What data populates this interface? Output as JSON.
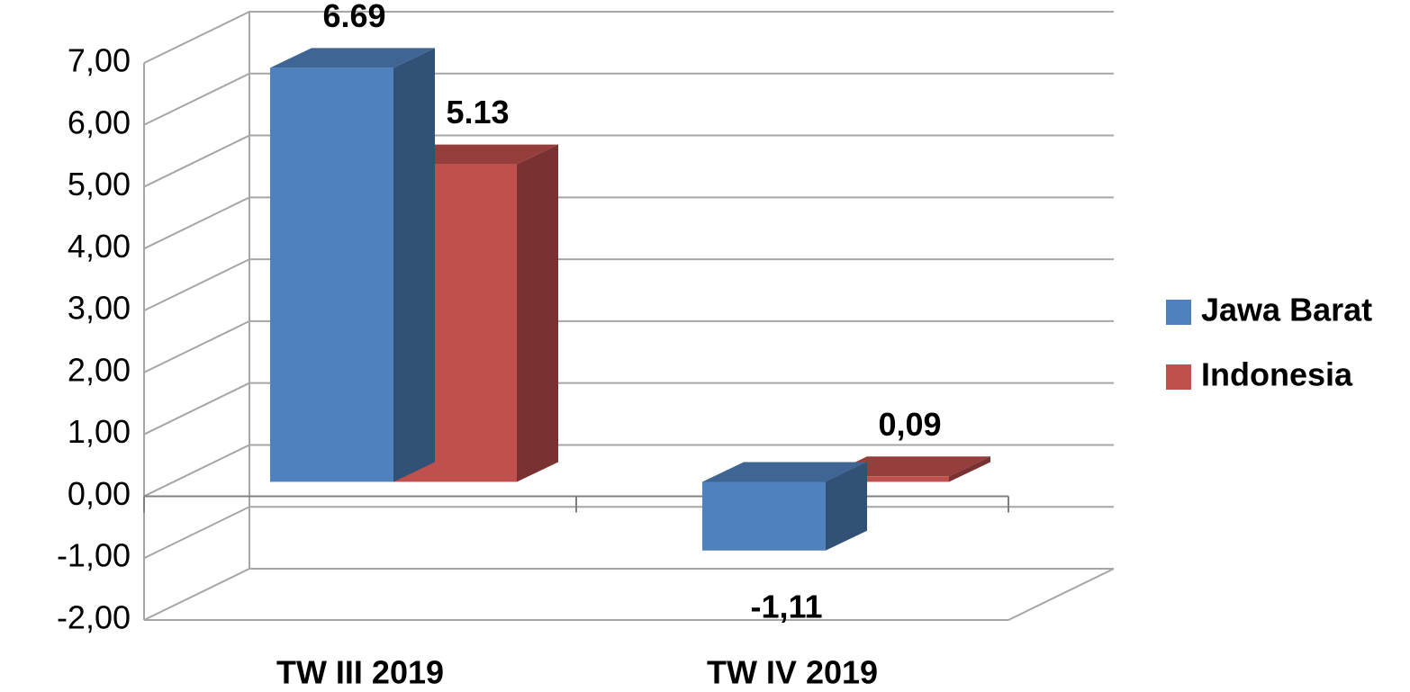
{
  "chart_data": {
    "type": "bar3d",
    "categories": [
      "TW III 2019",
      "TW IV 2019"
    ],
    "series": [
      {
        "name": "Jawa Barat",
        "color": "#4f81bd",
        "values": [
          6.69,
          -1.11
        ],
        "value_labels": [
          "6.69",
          "-1,11"
        ]
      },
      {
        "name": "Indonesia",
        "color": "#c0504d",
        "values": [
          5.13,
          0.09
        ],
        "value_labels": [
          "5.13",
          "0,09"
        ]
      }
    ],
    "ylim": [
      -2,
      7
    ],
    "yticks": [
      {
        "value": -2,
        "label": "-2,00"
      },
      {
        "value": -1,
        "label": "-1,00"
      },
      {
        "value": 0,
        "label": "0,00"
      },
      {
        "value": 1,
        "label": "1,00"
      },
      {
        "value": 2,
        "label": "2,00"
      },
      {
        "value": 3,
        "label": "3,00"
      },
      {
        "value": 4,
        "label": "4,00"
      },
      {
        "value": 5,
        "label": "5,00"
      },
      {
        "value": 6,
        "label": "6,00"
      },
      {
        "value": 7,
        "label": "7,00"
      }
    ],
    "grid": true,
    "legend": "right"
  }
}
